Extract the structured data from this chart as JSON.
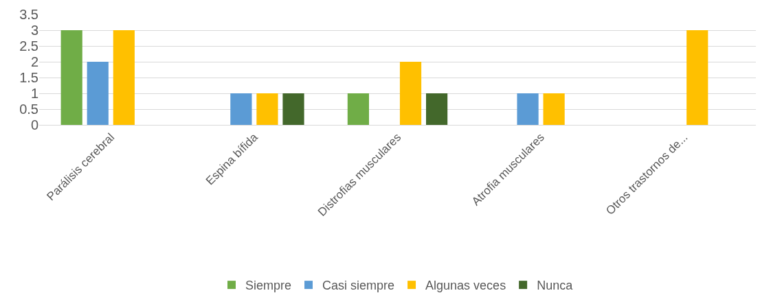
{
  "chart_data": {
    "type": "bar",
    "categories": [
      "Parálisis cerebral",
      "Espina bífida",
      "Distrofias musculares",
      "Atrofia musculares",
      "Otros trastornos de..."
    ],
    "series": [
      {
        "name": "Siempre",
        "color": "#70ad47",
        "values": [
          3,
          0,
          1,
          0,
          0
        ]
      },
      {
        "name": "Casi siempre",
        "color": "#5b9bd5",
        "values": [
          2,
          1,
          0,
          1,
          0
        ]
      },
      {
        "name": "Algunas veces",
        "color": "#ffc000",
        "values": [
          3,
          1,
          2,
          1,
          3
        ]
      },
      {
        "name": "Nunca",
        "color": "#43682b",
        "values": [
          0,
          1,
          1,
          0,
          0
        ]
      }
    ],
    "ylim": [
      0,
      3.5
    ],
    "yticks": [
      0,
      0.5,
      1,
      1.5,
      2,
      2.5,
      3,
      3.5
    ],
    "grid": "y",
    "legend": "bottom"
  }
}
